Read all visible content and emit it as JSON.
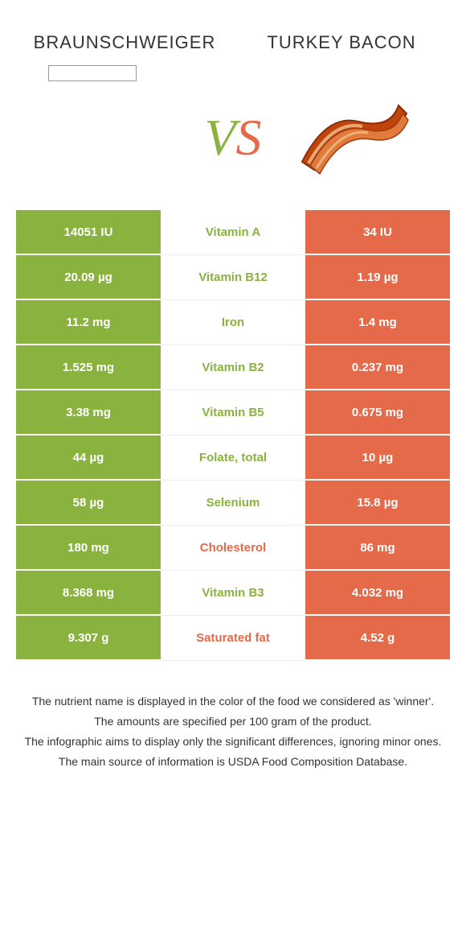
{
  "colors": {
    "left": "#8ab23f",
    "right": "#e46a4a",
    "text": "#333333",
    "white": "#ffffff"
  },
  "header": {
    "left_title": "BRAUNSCHWEIGER",
    "right_title": "TURKEY BACON"
  },
  "vs": {
    "v": "V",
    "s": "S"
  },
  "rows": [
    {
      "left": "14051 IU",
      "mid": "Vitamin A",
      "right": "34 IU",
      "winner": "left"
    },
    {
      "left": "20.09 µg",
      "mid": "Vitamin B12",
      "right": "1.19 µg",
      "winner": "left"
    },
    {
      "left": "11.2 mg",
      "mid": "Iron",
      "right": "1.4 mg",
      "winner": "left"
    },
    {
      "left": "1.525 mg",
      "mid": "Vitamin B2",
      "right": "0.237 mg",
      "winner": "left"
    },
    {
      "left": "3.38 mg",
      "mid": "Vitamin B5",
      "right": "0.675 mg",
      "winner": "left"
    },
    {
      "left": "44 µg",
      "mid": "Folate, total",
      "right": "10 µg",
      "winner": "left"
    },
    {
      "left": "58 µg",
      "mid": "Selenium",
      "right": "15.8 µg",
      "winner": "left"
    },
    {
      "left": "180 mg",
      "mid": "Cholesterol",
      "right": "86 mg",
      "winner": "right"
    },
    {
      "left": "8.368 mg",
      "mid": "Vitamin B3",
      "right": "4.032 mg",
      "winner": "left"
    },
    {
      "left": "9.307 g",
      "mid": "Saturated fat",
      "right": "4.52 g",
      "winner": "right"
    }
  ],
  "footnotes": [
    "The nutrient name is displayed in the color of the food we considered as 'winner'.",
    "The amounts are specified per 100 gram of the product.",
    "The infographic aims to display only the significant differences, ignoring minor ones.",
    "The main source of information is USDA Food Composition Database."
  ]
}
